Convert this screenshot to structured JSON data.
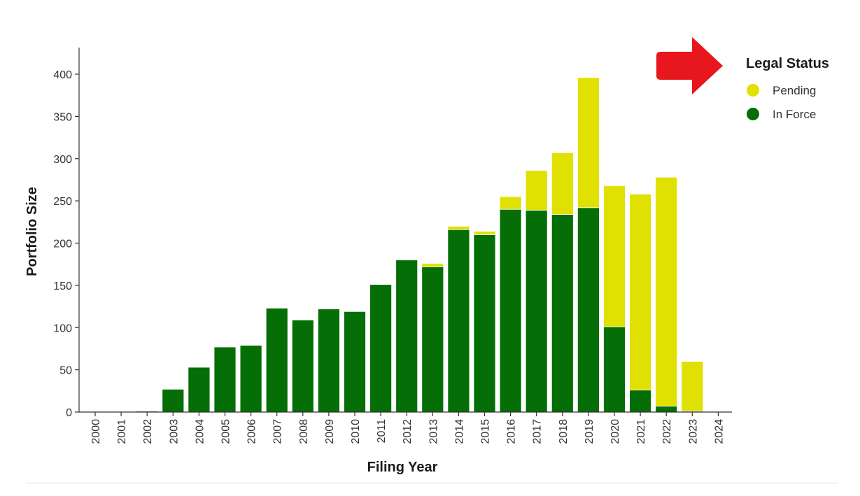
{
  "chart_data": {
    "type": "bar",
    "stacked": true,
    "xlabel": "Filing Year",
    "ylabel": "Portfolio Size",
    "ylim": [
      0,
      430
    ],
    "yticks": [
      0,
      50,
      100,
      150,
      200,
      250,
      300,
      350,
      400
    ],
    "categories": [
      "2000",
      "2001",
      "2002",
      "2003",
      "2004",
      "2005",
      "2006",
      "2007",
      "2008",
      "2009",
      "2010",
      "2011",
      "2012",
      "2013",
      "2014",
      "2015",
      "2016",
      "2017",
      "2018",
      "2019",
      "2020",
      "2021",
      "2022",
      "2023",
      "2024"
    ],
    "series": [
      {
        "name": "In Force",
        "color": "#066e06",
        "values": [
          0,
          0,
          1,
          27,
          53,
          77,
          79,
          123,
          109,
          122,
          119,
          151,
          180,
          172,
          216,
          210,
          240,
          239,
          234,
          242,
          101,
          26,
          7,
          1,
          0
        ]
      },
      {
        "name": "Pending",
        "color": "#e1e003",
        "values": [
          0,
          0,
          0,
          0,
          0,
          0,
          0,
          0,
          0,
          0,
          0,
          0,
          0,
          4,
          4,
          4,
          15,
          47,
          73,
          154,
          167,
          232,
          271,
          59,
          0
        ]
      }
    ],
    "legend": {
      "title": "Legal Status",
      "position": "top-right",
      "items": [
        {
          "label": "Pending",
          "color": "#e1e003"
        },
        {
          "label": "In Force",
          "color": "#066e06"
        }
      ]
    },
    "grid": false
  },
  "annotation": {
    "arrow_color": "#e8161d",
    "arrow_icon": "right-arrow-icon"
  }
}
